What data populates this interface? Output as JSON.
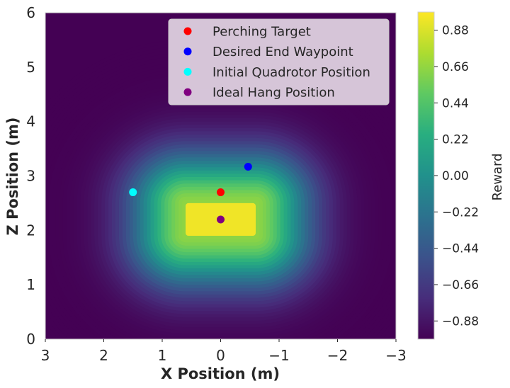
{
  "chart_data": {
    "type": "heatmap",
    "title": "",
    "xlabel": "X Position (m)",
    "ylabel": "Z Position (m)",
    "xlim": [
      3,
      -3
    ],
    "ylim": [
      0,
      6
    ],
    "x_ticks": [
      3,
      2,
      1,
      0,
      -1,
      -2,
      -3
    ],
    "x_tick_labels": [
      "3",
      "2",
      "1",
      "0",
      "−1",
      "−2",
      "−3"
    ],
    "y_ticks": [
      0,
      1,
      2,
      3,
      4,
      5,
      6
    ],
    "y_tick_labels": [
      "0",
      "1",
      "2",
      "3",
      "4",
      "5",
      "6"
    ],
    "grid": false,
    "legend_position": "top-right",
    "colormap": "viridis",
    "colorbar": {
      "label": "Reward",
      "range": [
        -0.99,
        0.99
      ],
      "ticks": [
        0.88,
        0.66,
        0.44,
        0.22,
        0.0,
        -0.22,
        -0.44,
        -0.66,
        -0.88
      ],
      "tick_labels": [
        "0.88",
        "0.66",
        "0.44",
        "0.22",
        "0.00",
        "−0.22",
        "−0.44",
        "−0.66",
        "−0.88"
      ]
    },
    "reward_field": {
      "plateau_x": [
        -0.6,
        0.6
      ],
      "plateau_z": [
        1.9,
        2.5
      ],
      "plateau_value": 0.95
    },
    "points": [
      {
        "name": "Perching Target",
        "x": 0.0,
        "z": 2.7,
        "color": "#ff0000"
      },
      {
        "name": "Desired End Waypoint",
        "x": -0.47,
        "z": 3.17,
        "color": "#0000ff"
      },
      {
        "name": "Initial Quadrotor Position",
        "x": 1.5,
        "z": 2.7,
        "color": "#00ffff"
      },
      {
        "name": "Ideal Hang Position",
        "x": 0.0,
        "z": 2.2,
        "color": "#800080"
      }
    ]
  }
}
